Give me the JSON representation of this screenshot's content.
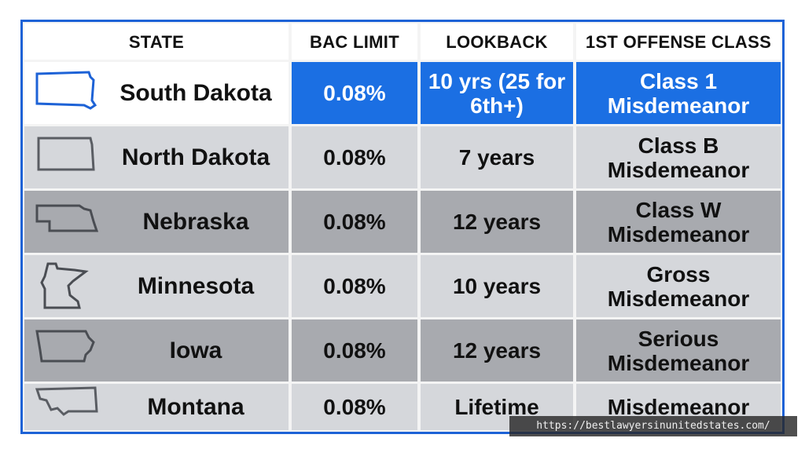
{
  "header": {
    "columns": [
      "STATE",
      "BAC LIMIT",
      "LOOKBACK",
      "1ST OFFENSE CLASS"
    ]
  },
  "table": {
    "rows": [
      [
        "South Dakota",
        "0.08%",
        "10 yrs (25 for 6th+)",
        "Class 1 Misdemeanor"
      ],
      [
        "North Dakota",
        "0.08%",
        "7 years",
        "Class B Misdemeanor"
      ],
      [
        "Nebraska",
        "0.08%",
        "12 years",
        "Class W Misdemeanor"
      ],
      [
        "Minnesota",
        "0.08%",
        "10 years",
        "Gross Misdemeanor"
      ],
      [
        "Iowa",
        "0.08%",
        "12 years",
        "Serious Misdemeanor"
      ],
      [
        "Montana",
        "0.08%",
        "Lifetime",
        "Misdemeanor"
      ]
    ]
  },
  "watermark": "https://bestlawyersinunitedstates.com/"
}
